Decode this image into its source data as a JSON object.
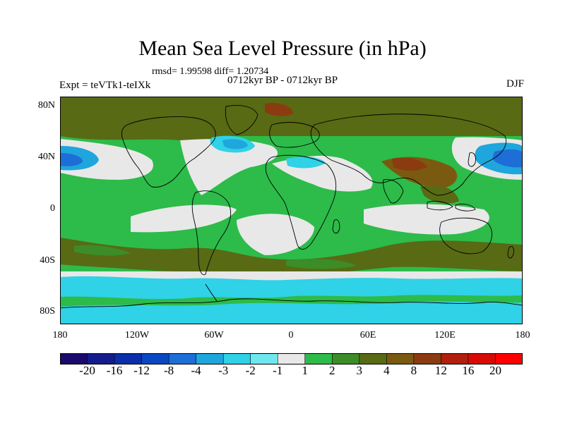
{
  "title": "Mean Sea Level Pressure (in hPa)",
  "stats_text": "rmsd= 1.99598 diff= 1.20734",
  "period_text": "0712kyr BP - 0712kyr BP",
  "expt_text": "Expt = teVTk1-teIXk",
  "season": "DJF",
  "lat_labels": [
    "80N",
    "40N",
    "0",
    "40S",
    "80S"
  ],
  "lon_labels": [
    "180",
    "120W",
    "60W",
    "0",
    "60E",
    "120E",
    "180"
  ],
  "colorbar": {
    "labels": [
      "-20",
      "-16",
      "-12",
      "-8",
      "-4",
      "-3",
      "-2",
      "-1",
      "1",
      "2",
      "3",
      "4",
      "8",
      "12",
      "16",
      "20"
    ],
    "colors": [
      "#1a0a6b",
      "#141c8c",
      "#0a2fa8",
      "#0a48c2",
      "#1d6ed6",
      "#1fa6dc",
      "#2fd2e6",
      "#6ee8ee",
      "#e8e8e8",
      "#2dbb4a",
      "#3c8c28",
      "#586a14",
      "#7a5a10",
      "#8a3c10",
      "#b0200c",
      "#d80a06",
      "#ff0000"
    ]
  },
  "map_colors": {
    "neutral": "#e8e8e8",
    "green2": "#2dbb4a",
    "green3": "#3c8c28",
    "olive4": "#586a14",
    "brown8": "#7a5a10",
    "rust12": "#8a3c10",
    "cyan_neg2": "#2fd2e6",
    "blue_neg3": "#1fa6dc",
    "blue_neg4": "#1d6ed6",
    "coast": "#000000"
  }
}
